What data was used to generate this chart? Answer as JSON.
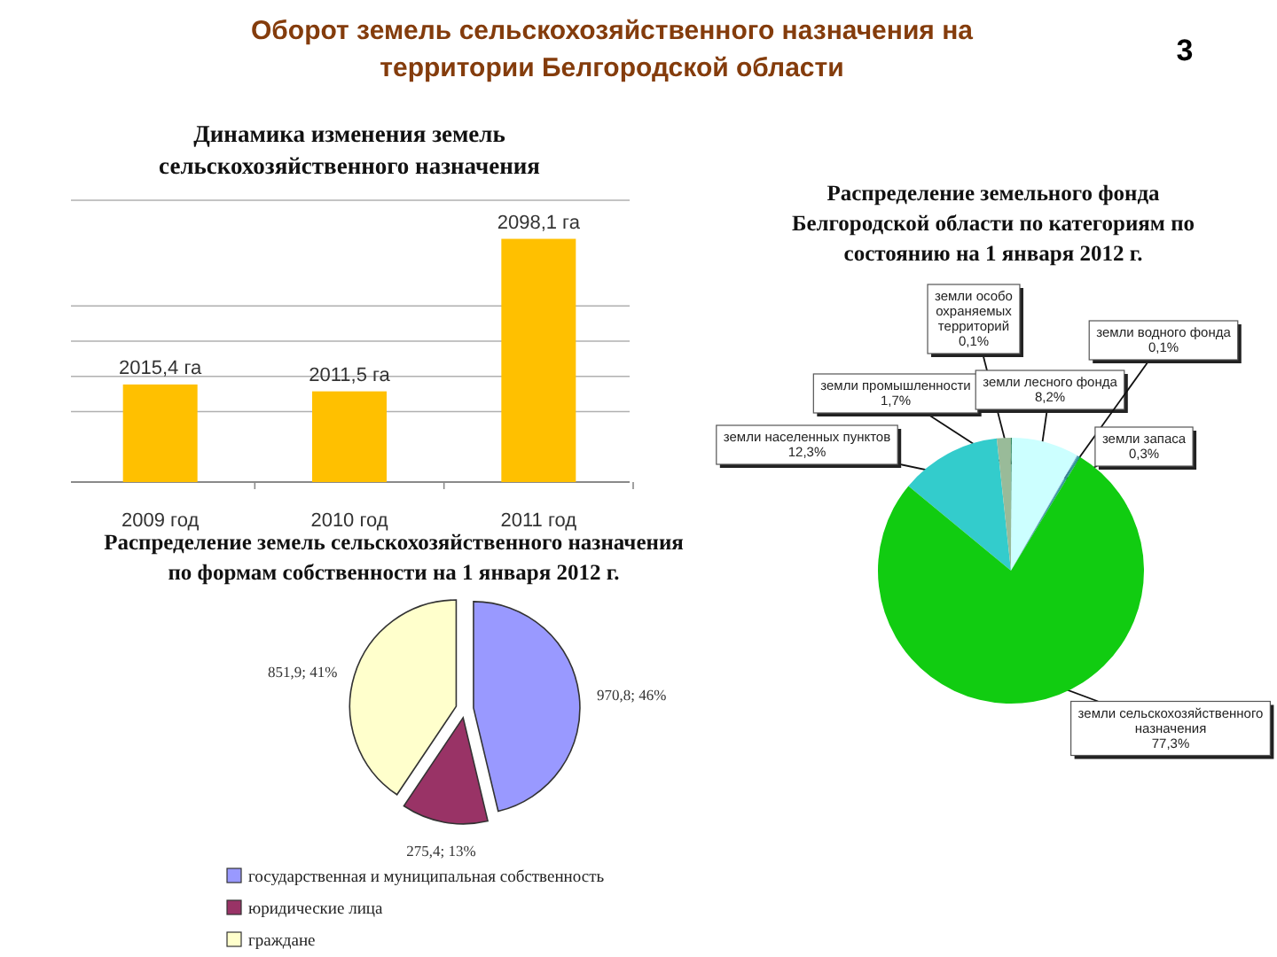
{
  "chart_data": [
    {
      "type": "other",
      "title": "Оборот земель сельскохозяйственного назначения на территории Белгородской области",
      "annotations": [
        "3"
      ]
    },
    {
      "type": "bar",
      "title": "Динамика изменения земель сельскохозяйственного назначения",
      "categories": [
        "2009 год",
        "2010 год",
        "2011 год"
      ],
      "values": [
        2015.4,
        2011.5,
        2098.1
      ],
      "value_labels": [
        "2015,4 га",
        "2011,5 га",
        "2098,1 га"
      ],
      "color": "#ffc000",
      "ylim": [
        1960,
        2120
      ],
      "yticks": [
        {
          "value": 1960,
          "label": null
        },
        {
          "value": 2000,
          "label": null
        },
        {
          "value": 2020,
          "label": null
        },
        {
          "value": 2040,
          "label": null
        },
        {
          "value": 2060,
          "label": null
        },
        {
          "value": 2120,
          "label": null
        }
      ],
      "grid": "y",
      "tick_labels": "x"
    },
    {
      "type": "pie",
      "title": "Распределение земельного фонда Белгородской области по категориям по состоянию на 1 января 2012 г.",
      "categories": [
        "земли населенных пунктов",
        "земли промышленности",
        "земли особо охраняемых территорий",
        "земли лесного фонда",
        "земли водного фонда",
        "земли запаса",
        "земли сельскохозяйственного назначения"
      ],
      "values": [
        12.3,
        1.7,
        0.1,
        8.2,
        0.1,
        0.3,
        77.3
      ],
      "value_labels": [
        "12,3%",
        "1,7%",
        "0,1%",
        "8,2%",
        "0,1%",
        "0,3%",
        "77,3%"
      ],
      "colors": [
        "#33cccc",
        "#99bb99",
        "#006633",
        "#ccffff",
        "#6699cc",
        "#339999",
        "#11cc11"
      ]
    },
    {
      "type": "pie",
      "title": "Распределение земель сельскохозяйственного назначения по формам собственности на 1 января 2012 г.",
      "categories": [
        "государственная и муниципальная собственность",
        "юридические лица",
        "граждане"
      ],
      "values": [
        970.8,
        275.4,
        851.9
      ],
      "value_labels": [
        "970,8; 46%",
        "275,4; 13%",
        "851,9; 41%"
      ],
      "colors": [
        "#9999ff",
        "#993366",
        "#ffffcc"
      ],
      "legend": "bottom"
    }
  ]
}
